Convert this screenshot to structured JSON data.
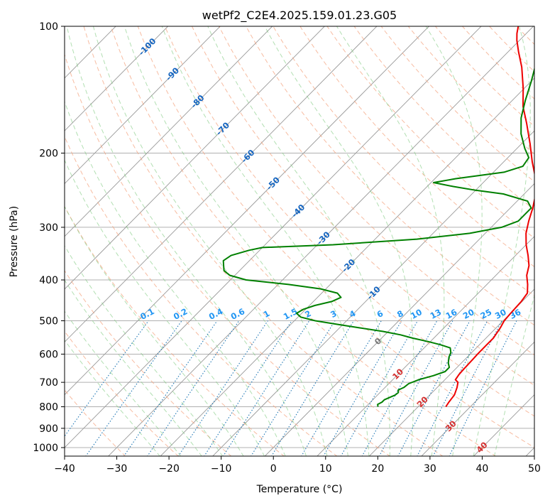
{
  "chart_data": {
    "type": "line",
    "subtype": "skew-T log-P diagram",
    "title": "wetPf2_C2E4.2025.159.01.23.G05",
    "xlabel": "Temperature (°C)",
    "ylabel": "Pressure (hPa)",
    "xlim": [
      -40,
      50
    ],
    "ylim": [
      1050,
      100
    ],
    "y_scale": "log",
    "grid": true,
    "x_ticks": [
      "−40",
      "−30",
      "−20",
      "−10",
      "0",
      "10",
      "20",
      "30",
      "40",
      "50"
    ],
    "y_ticks": [
      "100",
      "200",
      "300",
      "400",
      "500",
      "600",
      "700",
      "800",
      "900",
      "1000"
    ],
    "x_tick_values": [
      -40,
      -30,
      -20,
      -10,
      0,
      10,
      20,
      30,
      40,
      50
    ],
    "y_tick_values": [
      100,
      200,
      300,
      400,
      500,
      600,
      700,
      800,
      900,
      1000
    ],
    "isotherm_labels": [
      "-100",
      "-90",
      "-80",
      "-70",
      "-60",
      "-50",
      "-40",
      "-30",
      "-20",
      "-10",
      "0",
      "10",
      "20",
      "30",
      "40"
    ],
    "isotherm_label_values": [
      -100,
      -90,
      -80,
      -70,
      -60,
      -50,
      -40,
      -30,
      -20,
      -10,
      0,
      10,
      20,
      30,
      40
    ],
    "mixing_ratio_labels": [
      "0.1",
      "0.2",
      "0.4",
      "0.6",
      "1",
      "1.5",
      "2",
      "3",
      "4",
      "6",
      "8",
      "10",
      "13",
      "16",
      "20",
      "25",
      "30",
      "36"
    ],
    "series": [
      {
        "role": "temperature",
        "color": "#ee0000",
        "points": [
          [
            800,
            25.3
          ],
          [
            780,
            25.0
          ],
          [
            750,
            24.7
          ],
          [
            720,
            23.8
          ],
          [
            700,
            23.0
          ],
          [
            690,
            22.0
          ],
          [
            670,
            21.7
          ],
          [
            650,
            21.6
          ],
          [
            620,
            21.5
          ],
          [
            600,
            21.4
          ],
          [
            570,
            21.4
          ],
          [
            550,
            21.4
          ],
          [
            520,
            20.8
          ],
          [
            500,
            20.2
          ],
          [
            480,
            20.0
          ],
          [
            450,
            19.8
          ],
          [
            430,
            19.4
          ],
          [
            410,
            17.8
          ],
          [
            390,
            15.9
          ],
          [
            370,
            14.5
          ],
          [
            350,
            12.4
          ],
          [
            330,
            10.0
          ],
          [
            310,
            7.8
          ],
          [
            290,
            6.0
          ],
          [
            270,
            4.3
          ],
          [
            250,
            2.2
          ],
          [
            230,
            -0.7
          ],
          [
            210,
            -4.5
          ],
          [
            190,
            -8.4
          ],
          [
            170,
            -12.9
          ],
          [
            155,
            -16.8
          ],
          [
            140,
            -20.3
          ],
          [
            125,
            -24.5
          ],
          [
            115,
            -28.0
          ],
          [
            108,
            -30.5
          ],
          [
            104,
            -31.8
          ],
          [
            100,
            -32.9
          ]
        ]
      },
      {
        "role": "dewpoint",
        "color": "#008000",
        "points": [
          [
            800,
            12.3
          ],
          [
            790,
            11.8
          ],
          [
            780,
            12.2
          ],
          [
            770,
            12.2
          ],
          [
            760,
            12.8
          ],
          [
            750,
            13.4
          ],
          [
            740,
            13.5
          ],
          [
            730,
            13.0
          ],
          [
            720,
            13.6
          ],
          [
            705,
            13.8
          ],
          [
            690,
            15.0
          ],
          [
            675,
            17.0
          ],
          [
            660,
            18.5
          ],
          [
            645,
            18.5
          ],
          [
            630,
            17.5
          ],
          [
            610,
            16.5
          ],
          [
            595,
            16.0
          ],
          [
            580,
            15.0
          ],
          [
            570,
            12.5
          ],
          [
            560,
            9.5
          ],
          [
            550,
            6.0
          ],
          [
            540,
            3.0
          ],
          [
            530,
            -1.0
          ],
          [
            520,
            -6.0
          ],
          [
            510,
            -11.0
          ],
          [
            500,
            -16.0
          ],
          [
            490,
            -19.5
          ],
          [
            480,
            -21.0
          ],
          [
            470,
            -20.5
          ],
          [
            460,
            -19.0
          ],
          [
            450,
            -16.5
          ],
          [
            440,
            -15.5
          ],
          [
            430,
            -17.0
          ],
          [
            420,
            -21.0
          ],
          [
            410,
            -28.0
          ],
          [
            400,
            -37.0
          ],
          [
            390,
            -41.0
          ],
          [
            380,
            -43.0
          ],
          [
            370,
            -44.0
          ],
          [
            360,
            -45.0
          ],
          [
            350,
            -44.5
          ],
          [
            340,
            -42.0
          ],
          [
            335,
            -40.0
          ],
          [
            330,
            -27.0
          ],
          [
            320,
            -12.0
          ],
          [
            310,
            -3.0
          ],
          [
            300,
            2.0
          ],
          [
            290,
            4.0
          ],
          [
            280,
            4.0
          ],
          [
            270,
            4.0
          ],
          [
            260,
            2.0
          ],
          [
            250,
            -4.0
          ],
          [
            245,
            -10.0
          ],
          [
            240,
            -15.0
          ],
          [
            235,
            -19.5
          ],
          [
            230,
            -16.0
          ],
          [
            222,
            -8.0
          ],
          [
            215,
            -5.5
          ],
          [
            205,
            -6.0
          ],
          [
            195,
            -8.5
          ],
          [
            180,
            -12.0
          ],
          [
            165,
            -15.0
          ],
          [
            150,
            -17.5
          ],
          [
            135,
            -20.0
          ],
          [
            120,
            -23.0
          ],
          [
            110,
            -25.5
          ],
          [
            103,
            -27.5
          ],
          [
            100,
            -28.5
          ]
        ]
      }
    ]
  }
}
